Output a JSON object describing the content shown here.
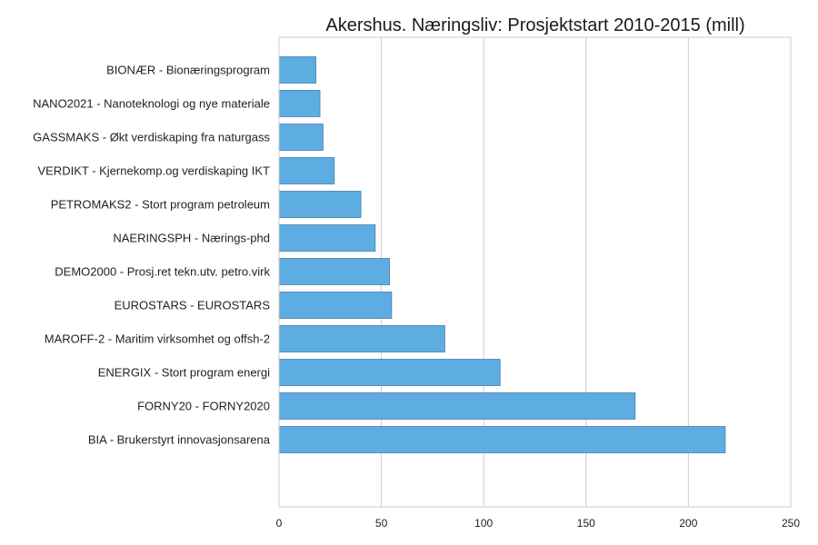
{
  "chart_data": {
    "type": "bar",
    "orientation": "horizontal",
    "title": "Akershus. Næringsliv: Prosjektstart 2010-2015 (mill)",
    "categories": [
      "BIONÆR - Bionæringsprogram",
      "NANO2021 - Nanoteknologi og nye materiale",
      "GASSMAKS - Økt verdiskaping fra naturgass",
      "VERDIKT - Kjernekomp.og verdiskaping IKT",
      "PETROMAKS2 - Stort program petroleum",
      "NAERINGSPH - Nærings-phd",
      "DEMO2000 - Prosj.ret tekn.utv. petro.virk",
      "EUROSTARS - EUROSTARS",
      "MAROFF-2 - Maritim virksomhet og offsh-2",
      "ENERGIX - Stort program energi",
      "FORNY20 - FORNY2020",
      "BIA - Brukerstyrt innovasjonsarena"
    ],
    "values": [
      18,
      20,
      21.5,
      27,
      40,
      47,
      54,
      55,
      81,
      108,
      174,
      218
    ],
    "xlim": [
      0,
      250
    ],
    "xticks": [
      0,
      50,
      100,
      150,
      200,
      250
    ],
    "xlabel": "",
    "ylabel": "",
    "grid": "vertical",
    "bar_color": "#5DADE2"
  }
}
